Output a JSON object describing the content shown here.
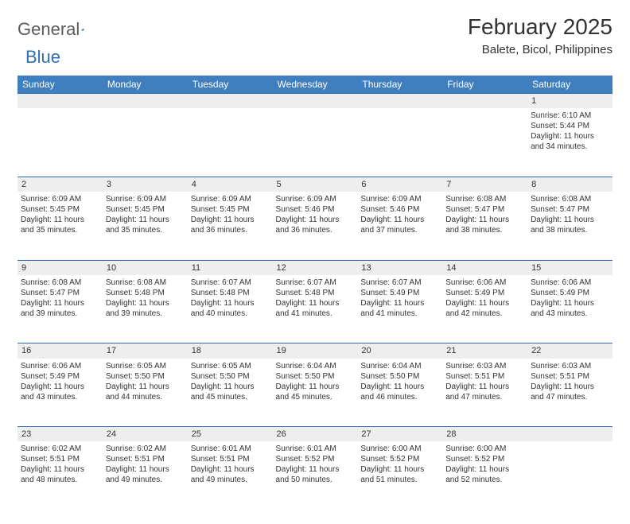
{
  "logo": {
    "textGray": "General",
    "textBlue": "Blue"
  },
  "title": "February 2025",
  "location": "Balete, Bicol, Philippines",
  "colors": {
    "headerBg": "#3f7fbf",
    "headerText": "#ffffff",
    "border": "#2f6fb0",
    "dayBg": "#eeeeee",
    "text": "#333333",
    "logoGray": "#5b5b5b",
    "logoBlue": "#2f6fb0"
  },
  "weekdays": [
    "Sunday",
    "Monday",
    "Tuesday",
    "Wednesday",
    "Thursday",
    "Friday",
    "Saturday"
  ],
  "weeks": [
    [
      null,
      null,
      null,
      null,
      null,
      null,
      {
        "n": "1",
        "sr": "6:10 AM",
        "ss": "5:44 PM",
        "dl": "11 hours and 34 minutes."
      }
    ],
    [
      {
        "n": "2",
        "sr": "6:09 AM",
        "ss": "5:45 PM",
        "dl": "11 hours and 35 minutes."
      },
      {
        "n": "3",
        "sr": "6:09 AM",
        "ss": "5:45 PM",
        "dl": "11 hours and 35 minutes."
      },
      {
        "n": "4",
        "sr": "6:09 AM",
        "ss": "5:45 PM",
        "dl": "11 hours and 36 minutes."
      },
      {
        "n": "5",
        "sr": "6:09 AM",
        "ss": "5:46 PM",
        "dl": "11 hours and 36 minutes."
      },
      {
        "n": "6",
        "sr": "6:09 AM",
        "ss": "5:46 PM",
        "dl": "11 hours and 37 minutes."
      },
      {
        "n": "7",
        "sr": "6:08 AM",
        "ss": "5:47 PM",
        "dl": "11 hours and 38 minutes."
      },
      {
        "n": "8",
        "sr": "6:08 AM",
        "ss": "5:47 PM",
        "dl": "11 hours and 38 minutes."
      }
    ],
    [
      {
        "n": "9",
        "sr": "6:08 AM",
        "ss": "5:47 PM",
        "dl": "11 hours and 39 minutes."
      },
      {
        "n": "10",
        "sr": "6:08 AM",
        "ss": "5:48 PM",
        "dl": "11 hours and 39 minutes."
      },
      {
        "n": "11",
        "sr": "6:07 AM",
        "ss": "5:48 PM",
        "dl": "11 hours and 40 minutes."
      },
      {
        "n": "12",
        "sr": "6:07 AM",
        "ss": "5:48 PM",
        "dl": "11 hours and 41 minutes."
      },
      {
        "n": "13",
        "sr": "6:07 AM",
        "ss": "5:49 PM",
        "dl": "11 hours and 41 minutes."
      },
      {
        "n": "14",
        "sr": "6:06 AM",
        "ss": "5:49 PM",
        "dl": "11 hours and 42 minutes."
      },
      {
        "n": "15",
        "sr": "6:06 AM",
        "ss": "5:49 PM",
        "dl": "11 hours and 43 minutes."
      }
    ],
    [
      {
        "n": "16",
        "sr": "6:06 AM",
        "ss": "5:49 PM",
        "dl": "11 hours and 43 minutes."
      },
      {
        "n": "17",
        "sr": "6:05 AM",
        "ss": "5:50 PM",
        "dl": "11 hours and 44 minutes."
      },
      {
        "n": "18",
        "sr": "6:05 AM",
        "ss": "5:50 PM",
        "dl": "11 hours and 45 minutes."
      },
      {
        "n": "19",
        "sr": "6:04 AM",
        "ss": "5:50 PM",
        "dl": "11 hours and 45 minutes."
      },
      {
        "n": "20",
        "sr": "6:04 AM",
        "ss": "5:50 PM",
        "dl": "11 hours and 46 minutes."
      },
      {
        "n": "21",
        "sr": "6:03 AM",
        "ss": "5:51 PM",
        "dl": "11 hours and 47 minutes."
      },
      {
        "n": "22",
        "sr": "6:03 AM",
        "ss": "5:51 PM",
        "dl": "11 hours and 47 minutes."
      }
    ],
    [
      {
        "n": "23",
        "sr": "6:02 AM",
        "ss": "5:51 PM",
        "dl": "11 hours and 48 minutes."
      },
      {
        "n": "24",
        "sr": "6:02 AM",
        "ss": "5:51 PM",
        "dl": "11 hours and 49 minutes."
      },
      {
        "n": "25",
        "sr": "6:01 AM",
        "ss": "5:51 PM",
        "dl": "11 hours and 49 minutes."
      },
      {
        "n": "26",
        "sr": "6:01 AM",
        "ss": "5:52 PM",
        "dl": "11 hours and 50 minutes."
      },
      {
        "n": "27",
        "sr": "6:00 AM",
        "ss": "5:52 PM",
        "dl": "11 hours and 51 minutes."
      },
      {
        "n": "28",
        "sr": "6:00 AM",
        "ss": "5:52 PM",
        "dl": "11 hours and 52 minutes."
      },
      null
    ]
  ],
  "labels": {
    "sunrise": "Sunrise:",
    "sunset": "Sunset:",
    "daylight": "Daylight:"
  }
}
